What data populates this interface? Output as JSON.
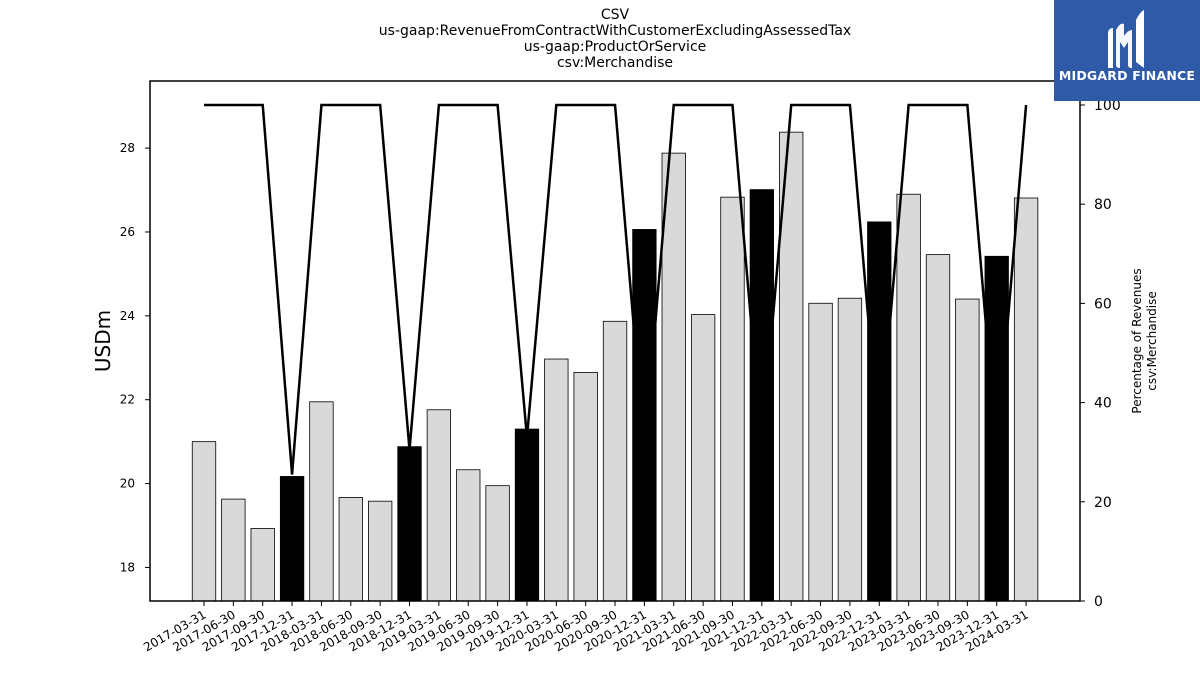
{
  "titles": [
    "CSV",
    "us-gaap:RevenueFromContractWithCustomerExcludingAssessedTax",
    "us-gaap:ProductOrService",
    "csv:Merchandise"
  ],
  "logo": {
    "text": "MIDGARD FINANCE",
    "color": "#2f5aa8",
    "icon": "midgard-logo-icon"
  },
  "chart_data": {
    "type": "bar",
    "title": "CSV us-gaap:RevenueFromContractWithCustomerExcludingAssessedTax us-gaap:ProductOrService csv:Merchandise",
    "ylabel": "USDm",
    "ylabel_right": [
      "Percentage of Revenues",
      "csv:Merchandise"
    ],
    "ylim": [
      17.2,
      29.6
    ],
    "ylim_right": [
      0,
      100.0
    ],
    "yticks": [
      18,
      20,
      22,
      24,
      26,
      28
    ],
    "yticks_right": [
      0,
      20,
      40,
      60,
      80,
      100
    ],
    "categories": [
      "2017-03-31",
      "2017-06-30",
      "2017-09-30",
      "2017-12-31",
      "2018-03-31",
      "2018-06-30",
      "2018-09-30",
      "2018-12-31",
      "2019-03-31",
      "2019-06-30",
      "2019-09-30",
      "2019-12-31",
      "2020-03-31",
      "2020-06-30",
      "2020-09-30",
      "2020-12-31",
      "2021-03-31",
      "2021-06-30",
      "2021-09-30",
      "2021-12-31",
      "2022-03-31",
      "2022-06-30",
      "2022-09-30",
      "2022-12-31",
      "2023-03-31",
      "2023-06-30",
      "2023-09-30",
      "2023-12-31",
      "2024-03-31"
    ],
    "series": [
      {
        "type": "bar",
        "values": [
          21.0,
          19.63,
          18.93,
          20.17,
          21.95,
          19.67,
          19.58,
          20.88,
          21.76,
          20.33,
          19.95,
          21.3,
          22.97,
          22.65,
          23.87,
          26.06,
          27.88,
          24.03,
          26.83,
          27.01,
          28.38,
          24.3,
          24.42,
          26.24,
          26.9,
          25.46,
          24.4,
          25.42,
          26.81
        ],
        "highlight": [
          false,
          false,
          false,
          true,
          false,
          false,
          false,
          true,
          false,
          false,
          false,
          true,
          false,
          false,
          false,
          true,
          false,
          false,
          false,
          true,
          false,
          false,
          false,
          true,
          false,
          false,
          false,
          true,
          false
        ]
      },
      {
        "type": "line",
        "axis": "right",
        "values": [
          100,
          100,
          100,
          25.5,
          100,
          100,
          100,
          30.5,
          100,
          100,
          100,
          33,
          100,
          100,
          100,
          30,
          100,
          100,
          100,
          31,
          100,
          100,
          100,
          31,
          100,
          100,
          100,
          30,
          100
        ]
      }
    ],
    "colors": {
      "bar": "#d9d9d9",
      "highlight": "#000000",
      "line": "#000000"
    }
  }
}
